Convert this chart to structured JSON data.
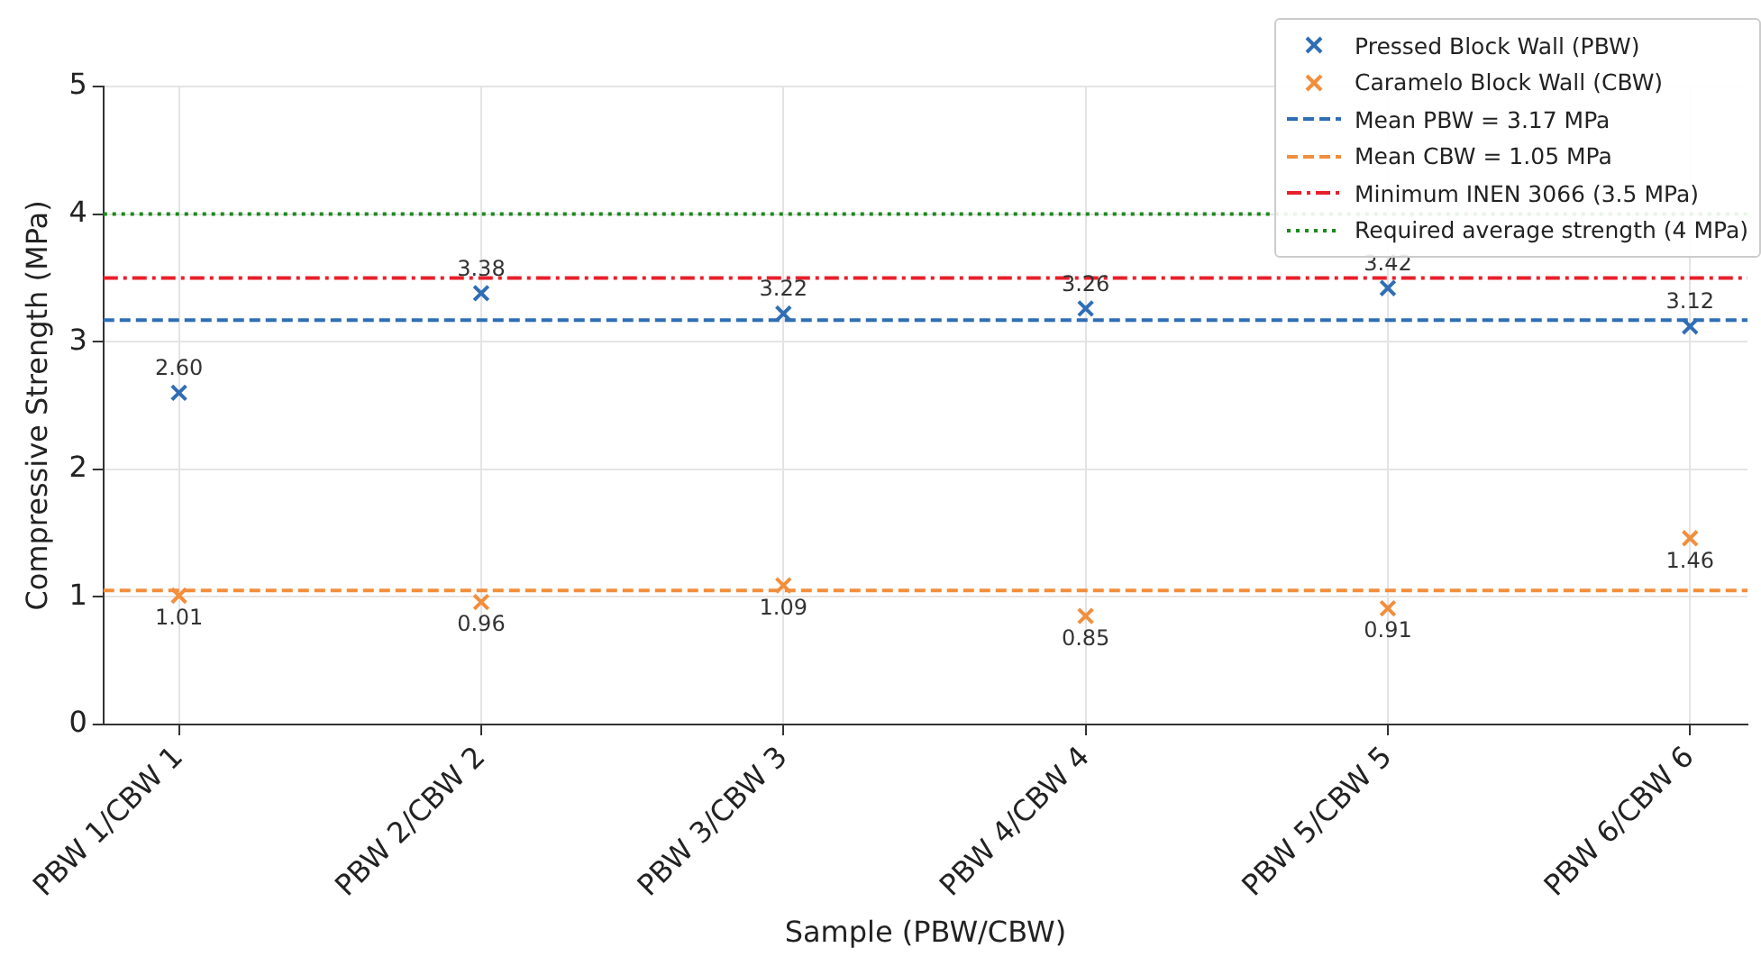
{
  "chart_data": {
    "type": "scatter",
    "xlabel": "Sample (PBW/CBW)",
    "ylabel": "Compressive Strength (MPa)",
    "categories": [
      "PBW 1/CBW 1",
      "PBW 2/CBW 2",
      "PBW 3/CBW 3",
      "PBW 4/CBW 4",
      "PBW 5/CBW 5",
      "PBW 6/CBW 6"
    ],
    "series": [
      {
        "name": "Pressed Block Wall (PBW)",
        "color": "#2f6eb5",
        "values": [
          2.6,
          3.38,
          3.22,
          3.26,
          3.42,
          3.12
        ],
        "value_labels": [
          "2.60",
          "3.38",
          "3.22",
          "3.26",
          "3.42",
          "3.12"
        ]
      },
      {
        "name": "Caramelo Block Wall (CBW)",
        "color": "#f28e3c",
        "values": [
          1.01,
          0.96,
          1.09,
          0.85,
          0.91,
          1.46
        ],
        "value_labels": [
          "1.01",
          "0.96",
          "1.09",
          "0.85",
          "0.91",
          "1.46"
        ]
      }
    ],
    "ylim": [
      0,
      5
    ],
    "yticks": [
      0,
      1,
      2,
      3,
      4,
      5
    ],
    "grid": true,
    "legend": "top right",
    "marker": "cross",
    "ref_lines": [
      {
        "axis": "y",
        "value": 3.17,
        "label": "Mean PBW = 3.17 MPa",
        "color": "#2f6eb5",
        "line_style": "dashed"
      },
      {
        "axis": "y",
        "value": 1.05,
        "label": "Mean CBW = 1.05 MPa",
        "color": "#f28e3c",
        "line_style": "dashed"
      },
      {
        "axis": "y",
        "value": 3.5,
        "label": "Minimum INEN 3066 (3.5 MPa)",
        "color": "#e8202a",
        "line_style": "dashdot"
      },
      {
        "axis": "y",
        "value": 4,
        "label": "Required average strength (4 MPa)",
        "color": "#1a8a1a",
        "line_style": "dotted"
      }
    ]
  }
}
